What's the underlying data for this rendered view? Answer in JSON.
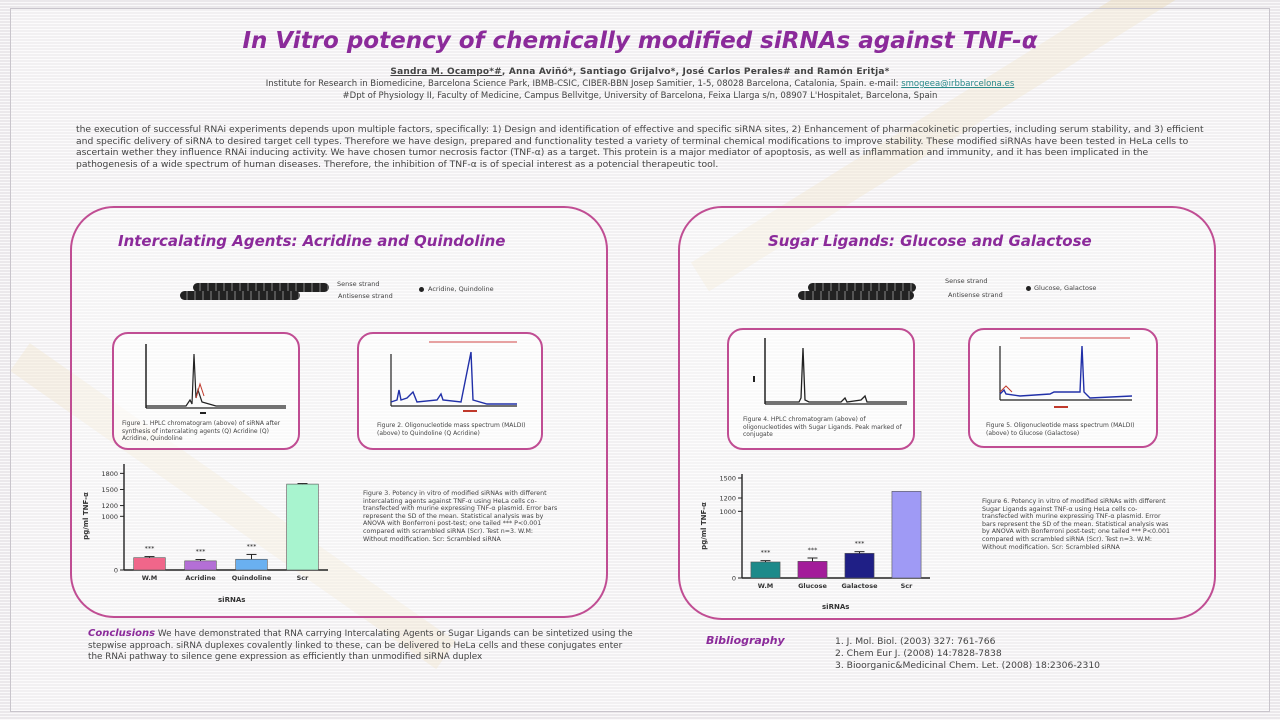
{
  "title": "In Vitro potency of chemically modified siRNAs against TNF-α",
  "authors": {
    "lead": "Sandra M. Ocampo*#",
    "rest": ", Anna Aviñó*, Santiago Grijalvo*, José Carlos Perales# and Ramón Eritja*"
  },
  "affiliation1": {
    "text": "Institute for Research in Biomedicine, Barcelona Science Park, IBMB-CSIC, CIBER-BBN Josep Samitier, 1-5, 08028 Barcelona, Catalonia, Spain. e-mail: ",
    "email": "smogeea@irbbarcelona.es"
  },
  "affiliation2": "#Dpt of Physiology II, Faculty of Medicine, Campus Bellvitge, University of Barcelona, Feixa Llarga s/n, 08907 L'Hospitalet, Barcelona, Spain",
  "intro": "the execution of successful RNAi experiments depends upon multiple factors, specifically: 1) Design and identification of effective and specific siRNA sites, 2) Enhancement of pharmacokinetic properties, including serum stability, and 3) efficient and specific delivery of siRNA to desired target cell types. Therefore we have design, prepared and functionality tested a variety of terminal chemical modifications to improve stability. These modified siRNAs have been tested in HeLa cells to ascertain wether they influence RNAi inducing activity. We have chosen tumor necrosis factor (TNF-α) as a target. This protein is a major mediator of apoptosis, as well as inflammation and immunity, and it has been implicated in the pathogenesis of a wide spectrum of human diseases. Therefore, the inhibition of TNF-α is of special interest as a potencial therapeutic tool.",
  "left_panel": {
    "title": "Intercalating Agents: Acridine and Quindoline",
    "sense_label": "Sense strand",
    "antisense_label": "Antisense strand",
    "legend": "Acridine, Quindoline",
    "fig1_caption": "Figure 1. HPLC chromatogram (above) of siRNA after synthesis of intercalating agents (Q) Acridine (Q) Acridine, Quindoline",
    "fig2_caption": "Figure 2. Oligonucleotide mass spectrum (MALDI) (above) to Quindoline (Q Acridine)",
    "fig3_caption": "Figure 3. Potency in vitro of modified siRNAs with different intercalating agents against TNF-α using HeLa cells co-transfected with murine expressing TNF-α plasmid. Error bars represent the SD of the mean. Statistical analysis was by ANOVA with Bonferroni post-test; one tailed *** P<0.001 compared with scrambled siRNA (Scr). Test n=3. W.M: Without modification. Scr: Scrambled siRNA",
    "ylabel": "pg/ml TNF-α",
    "xlabel": "siRNAs",
    "sig": "***"
  },
  "right_panel": {
    "title": "Sugar Ligands: Glucose and Galactose",
    "sense_label": "Sense strand",
    "antisense_label": "Antisense strand",
    "legend": "Glucose, Galactose",
    "fig1_caption": "Figure 4. HPLC chromatogram (above) of oligonucleotides with Sugar Ligands. Peak marked of conjugate",
    "fig2_caption": "Figure 5. Oligonucleotide mass spectrum (MALDI) (above) to Glucose (Galactose)",
    "fig3_caption": "Figure 6. Potency in vitro of modified siRNAs with different Sugar Ligands against TNF-α using HeLa cells co-transfected with murine expressing TNF-α plasmid. Error bars represent the SD of the mean. Statistical analysis was by ANOVA with Bonferroni post-test; one tailed *** P<0.001 compared with scrambled siRNA (Scr). Test n=3. W.M: Without modification. Scr: Scrambled siRNA",
    "ylabel": "pg/ml TNF-α",
    "xlabel": "siRNAs",
    "sig": "***"
  },
  "conclusions": {
    "heading": "Conclusions",
    "text": "We have demonstrated that RNA carrying Intercalating Agents or Sugar Ligands can be sintetized using the stepwise approach. siRNA duplexes covalently linked to these, can be delivered to HeLa cells and these conjugates enter the RNAi pathway to silence gene expression as efficiently than unmodified siRNA duplex"
  },
  "bibliography": {
    "heading": "Bibliography",
    "items": [
      "1. J. Mol. Biol. (2003) 327: 761-766",
      "2. Chem Eur J. (2008) 14:7828-7838",
      "3. Bioorganic&Medicinal Chem. Let. (2008) 18:2306-2310"
    ]
  },
  "chart_data": [
    {
      "type": "bar",
      "categories": [
        "W.M",
        "Acridine",
        "Quindoline",
        "Scr"
      ],
      "values": [
        230,
        170,
        200,
        1600
      ],
      "errors": [
        20,
        25,
        90,
        10
      ],
      "colors": [
        "#f0668a",
        "#b46fd6",
        "#6ab0f0",
        "#a8f4cf"
      ],
      "ylim": [
        0,
        1900
      ],
      "yticks": [
        0,
        1000,
        1200,
        1500,
        1800
      ],
      "title": "",
      "xlabel": "siRNAs",
      "ylabel": "pg/ml TNF-α"
    },
    {
      "type": "bar",
      "categories": [
        "W.M",
        "Glucose",
        "Galactose",
        "Scr"
      ],
      "values": [
        240,
        250,
        370,
        1300
      ],
      "errors": [
        20,
        50,
        25,
        0
      ],
      "colors": [
        "#1d8a8a",
        "#a31c9a",
        "#1f1f86",
        "#9f9af5"
      ],
      "ylim": [
        0,
        1500
      ],
      "yticks": [
        0,
        1000,
        1200,
        1500
      ],
      "title": "",
      "xlabel": "siRNAs",
      "ylabel": "pg/ml TNF-α"
    }
  ]
}
